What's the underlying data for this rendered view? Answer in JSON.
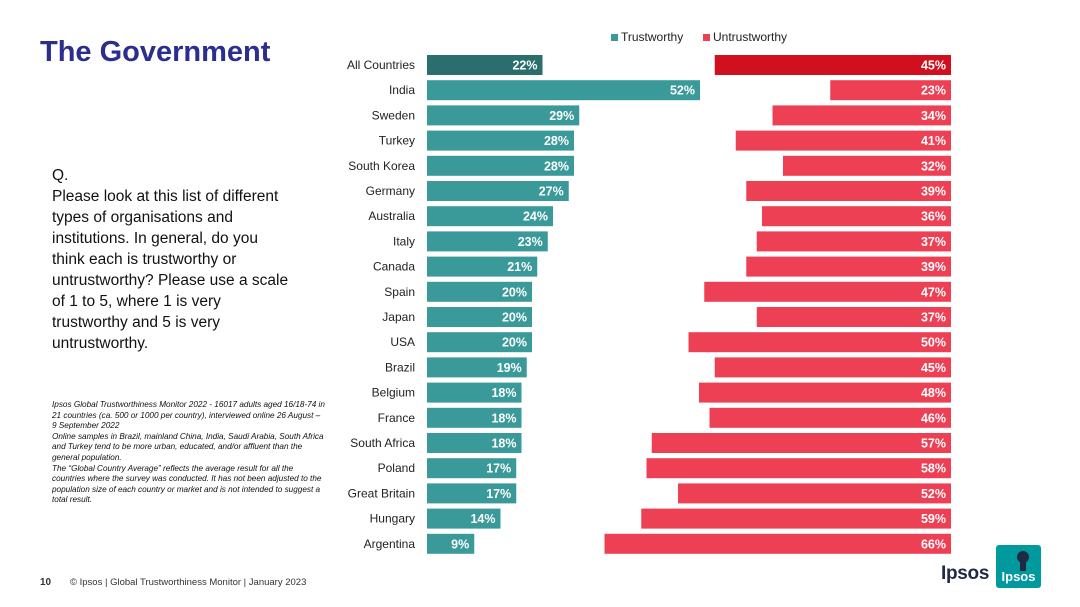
{
  "page": {
    "title": "The Government",
    "question_label": "Q.",
    "question_text": "Please look at this list of different types of organisations and institutions. In general, do you think each is trustworthy or untrustworthy? Please use a scale of 1 to 5, where 1 is very trustworthy and 5 is very untrustworthy.",
    "notes": [
      "Ipsos Global Trustworthiness Monitor 2022 - 16017 adults aged 16/18-74 in 21 countries (ca. 500 or 1000 per country), interviewed online 26 August – 9 September 2022",
      "Online samples in Brazil, mainland China, India, Saudi Arabia, South Africa and Turkey tend to be more urban, educated, and/or affluent than the general population.",
      "The “Global Country Average” reflects the average result for all the countries where the survey was conducted. It has not been adjusted to the population size of each country or market and is not intended to suggest a total result."
    ],
    "page_number": "10",
    "footer": "© Ipsos | Global Trustworthiness Monitor | January 2023",
    "logo_text": "Ipsos",
    "logo_mark_text": "Ipsos"
  },
  "colors": {
    "title": "#2b2d8f",
    "trustworthy": "#3a9a9a",
    "trustworthy_highlight": "#2a6e6e",
    "untrustworthy": "#ee4055",
    "untrustworthy_highlight": "#d0101f",
    "logo": "#009a9e"
  },
  "chart_data": {
    "type": "bar",
    "orientation": "horizontal",
    "legend_position": "top",
    "categories": [
      "All Countries",
      "India",
      "Sweden",
      "Turkey",
      "South Korea",
      "Germany",
      "Australia",
      "Italy",
      "Canada",
      "Spain",
      "Japan",
      "USA",
      "Brazil",
      "Belgium",
      "France",
      "South Africa",
      "Poland",
      "Great Britain",
      "Hungary",
      "Argentina"
    ],
    "highlight_category": "All Countries",
    "value_suffix": "%",
    "series": [
      {
        "name": "Trustworthy",
        "values": [
          22,
          52,
          29,
          28,
          28,
          27,
          24,
          23,
          21,
          20,
          20,
          20,
          19,
          18,
          18,
          18,
          17,
          17,
          14,
          9
        ]
      },
      {
        "name": "Untrustworthy",
        "values": [
          45,
          23,
          34,
          41,
          32,
          39,
          36,
          37,
          39,
          47,
          37,
          50,
          45,
          48,
          46,
          57,
          58,
          52,
          59,
          66
        ]
      }
    ],
    "xlim": [
      0,
      100
    ]
  }
}
